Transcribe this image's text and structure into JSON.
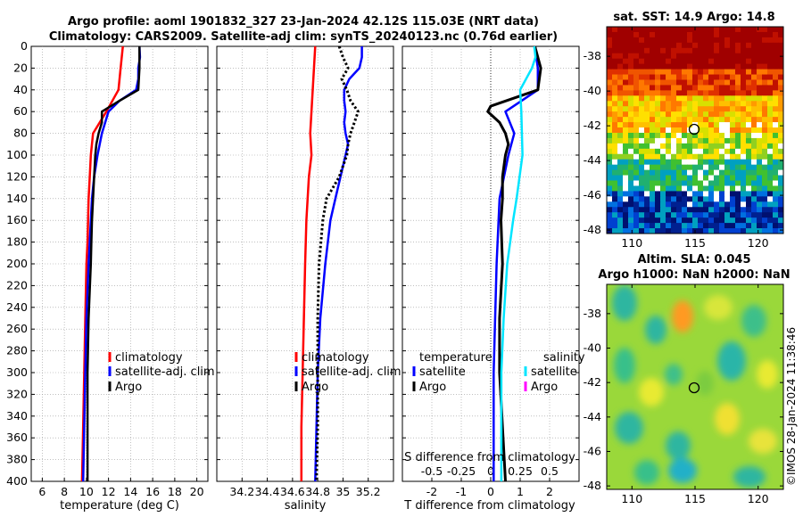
{
  "titles": {
    "line1": "Argo profile: aoml 1901832_327 23-Jan-2024 42.12S 115.03E (NRT data)",
    "line2": "Climatology: CARS2009. Satellite-adj clim: synTS_20240123.nc (0.76d earlier)",
    "sst": "sat. SST: 14.9 Argo: 14.8",
    "sla_line1": "Altim. SLA: 0.045",
    "sla_line2": "Argo h1000: NaN h2000: NaN",
    "stamp": "©IMOS 28-Jan-2024 11:38:46"
  },
  "colors": {
    "climatology": "#ff0000",
    "satellite": "#0000ff",
    "argo": "#000000",
    "salinity_satellite": "#00e5ff",
    "salinity_argo": "#ff00ff"
  },
  "legends": {
    "climatology": "climatology",
    "satellite_adj": "satellite-adj. clim",
    "argo": "Argo",
    "temperature": "temperature",
    "salinity": "salinity",
    "satellite": "satellite"
  },
  "chart_data": [
    {
      "type": "line",
      "name": "temperature",
      "xlabel": "temperature (deg C)",
      "ylabel": "",
      "xlim": [
        5,
        21
      ],
      "ylim": [
        400,
        0
      ],
      "xticks": [
        6,
        8,
        10,
        12,
        14,
        16,
        18,
        20
      ],
      "yticks": [
        0,
        20,
        40,
        60,
        80,
        100,
        120,
        140,
        160,
        180,
        200,
        220,
        240,
        260,
        280,
        300,
        320,
        340,
        360,
        380,
        400
      ],
      "series": [
        {
          "name": "climatology",
          "depth": [
            0,
            20,
            40,
            60,
            80,
            100,
            120,
            140,
            160,
            180,
            200,
            250,
            300,
            350,
            400
          ],
          "values": [
            13.3,
            13.1,
            12.9,
            11.8,
            10.6,
            10.4,
            10.3,
            10.2,
            10.15,
            10.1,
            10.0,
            9.9,
            9.8,
            9.7,
            9.6
          ]
        },
        {
          "name": "satellite-adj. clim",
          "depth": [
            0,
            10,
            20,
            30,
            40,
            50,
            60,
            70,
            80,
            100,
            120,
            140,
            160,
            200,
            250,
            300,
            350,
            400
          ],
          "values": [
            14.8,
            14.85,
            14.7,
            14.7,
            14.5,
            13.0,
            12.0,
            11.7,
            11.4,
            11.0,
            10.7,
            10.5,
            10.4,
            10.2,
            10.0,
            9.9,
            9.8,
            9.7
          ]
        },
        {
          "name": "Argo",
          "depth": [
            0,
            20,
            40,
            50,
            60,
            70,
            80,
            90,
            100,
            120,
            140,
            160,
            180,
            200,
            250,
            300,
            350,
            400
          ],
          "values": [
            14.8,
            14.8,
            14.7,
            13.0,
            11.4,
            11.4,
            11.1,
            10.9,
            10.8,
            10.7,
            10.6,
            10.5,
            10.45,
            10.4,
            10.2,
            10.1,
            10.1,
            10.1
          ]
        }
      ]
    },
    {
      "type": "line",
      "name": "salinity",
      "xlabel": "salinity",
      "ylabel": "",
      "xlim": [
        34.0,
        35.4
      ],
      "ylim": [
        400,
        0
      ],
      "xticks": [
        34.2,
        34.4,
        34.6,
        34.8,
        35.0,
        35.2
      ],
      "series": [
        {
          "name": "climatology",
          "depth": [
            0,
            20,
            40,
            60,
            80,
            100,
            120,
            140,
            160,
            200,
            250,
            300,
            350,
            400
          ],
          "values": [
            34.78,
            34.77,
            34.76,
            34.75,
            34.74,
            34.75,
            34.73,
            34.72,
            34.71,
            34.7,
            34.69,
            34.68,
            34.67,
            34.67
          ]
        },
        {
          "name": "satellite-adj. clim",
          "depth": [
            0,
            10,
            20,
            30,
            40,
            50,
            60,
            70,
            80,
            90,
            100,
            120,
            140,
            160,
            200,
            250,
            300,
            350,
            400
          ],
          "values": [
            35.15,
            35.15,
            35.13,
            35.05,
            35.01,
            35.01,
            35.02,
            35.01,
            35.02,
            35.04,
            35.02,
            34.98,
            34.94,
            34.9,
            34.86,
            34.82,
            34.8,
            34.79,
            34.78
          ]
        },
        {
          "name": "Argo",
          "depth": [
            0,
            10,
            20,
            30,
            40,
            50,
            60,
            70,
            80,
            90,
            100,
            120,
            140,
            160,
            200,
            250,
            300,
            350,
            400
          ],
          "values": [
            34.97,
            35.0,
            35.04,
            34.99,
            35.03,
            35.06,
            35.12,
            35.09,
            35.06,
            35.04,
            35.03,
            34.97,
            34.87,
            34.84,
            34.81,
            34.8,
            34.8,
            34.8,
            34.79
          ]
        }
      ]
    },
    {
      "type": "line",
      "name": "difference from climatology",
      "xlabel": "T difference from climatology",
      "xlabel2": "S difference from climatology",
      "xlim": [
        -3,
        3
      ],
      "ylim": [
        400,
        0
      ],
      "xticks": [
        -2,
        -1,
        0,
        1,
        2
      ],
      "xticks2": [
        -0.5,
        -0.25,
        0,
        0.25,
        0.5
      ],
      "xticks2_labels": [
        "-0.5",
        "-0.25",
        "0",
        "0.25",
        "0.5"
      ],
      "series": [
        {
          "name": "temperature satellite",
          "depth": [
            0,
            20,
            40,
            60,
            80,
            100,
            140,
            200,
            300,
            400
          ],
          "values": [
            1.5,
            1.6,
            1.6,
            0.5,
            0.8,
            0.6,
            0.3,
            0.2,
            0.1,
            0.1
          ]
        },
        {
          "name": "temperature Argo",
          "depth": [
            0,
            20,
            40,
            55,
            60,
            70,
            80,
            90,
            100,
            120,
            140,
            160,
            200,
            250,
            300,
            350,
            400
          ],
          "values": [
            1.5,
            1.7,
            1.6,
            0.0,
            -0.1,
            0.3,
            0.5,
            0.6,
            0.5,
            0.4,
            0.4,
            0.35,
            0.4,
            0.3,
            0.3,
            0.4,
            0.5
          ]
        },
        {
          "name": "salinity satellite",
          "depth": [
            0,
            10,
            20,
            40,
            60,
            100,
            140,
            160,
            200,
            250,
            300,
            400
          ],
          "values": [
            0.37,
            0.38,
            0.35,
            0.25,
            0.26,
            0.27,
            0.22,
            0.19,
            0.14,
            0.11,
            0.09,
            0.09
          ]
        }
      ]
    },
    {
      "type": "heatmap",
      "name": "satellite SST",
      "title": "sat. SST: 14.9 Argo: 14.8",
      "xlim": [
        108,
        122
      ],
      "ylim": [
        -48.2,
        -36.3
      ],
      "xticks": [
        110,
        115,
        120
      ],
      "yticks": [
        -38,
        -40,
        -42,
        -44,
        -46,
        -48
      ],
      "marker": {
        "lon": 115.03,
        "lat": -42.12
      }
    },
    {
      "type": "heatmap",
      "name": "altimetry SLA",
      "title": "Altim. SLA: 0.045",
      "xlim": [
        108,
        122
      ],
      "ylim": [
        -48.2,
        -36.3
      ],
      "xticks": [
        110,
        115,
        120
      ],
      "yticks": [
        -38,
        -40,
        -42,
        -44,
        -46,
        -48
      ],
      "marker": {
        "lon": 115.03,
        "lat": -42.12
      }
    }
  ]
}
